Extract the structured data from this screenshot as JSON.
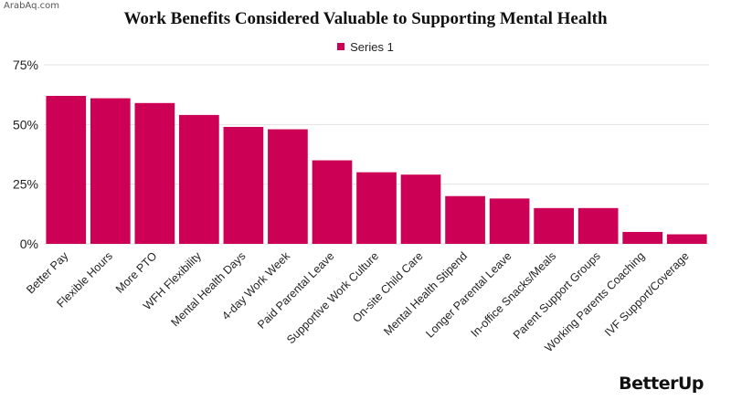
{
  "watermark": "ArabAq.com",
  "brand": "BetterUp",
  "chart_data": {
    "type": "bar",
    "title": "Work Benefits Considered Valuable to Supporting Mental Health",
    "legend": {
      "position": "top",
      "entries": [
        "Series 1"
      ]
    },
    "xlabel": "",
    "ylabel": "",
    "ylim": [
      0,
      75
    ],
    "yticks": [
      0,
      25,
      50,
      75
    ],
    "ytick_labels": [
      "0%",
      "25%",
      "50%",
      "75%"
    ],
    "grid": true,
    "bar_color": "#cc0055",
    "categories": [
      "Better Pay",
      "Flexible Hours",
      "More PTO",
      "WFH Flexibility",
      "Mental Health Days",
      "4-day Work Week",
      "Paid Parental Leave",
      "Supportive Work Culture",
      "On-site Child Care",
      "Mental Health Stipend",
      "Longer Parental Leave",
      "In-office Snacks/Meals",
      "Parent Support Groups",
      "Working Parents Coaching",
      "IVF Support/Coverage"
    ],
    "series": [
      {
        "name": "Series 1",
        "values": [
          62,
          61,
          59,
          54,
          49,
          48,
          35,
          30,
          29,
          20,
          19,
          15,
          15,
          5,
          4
        ]
      }
    ]
  }
}
